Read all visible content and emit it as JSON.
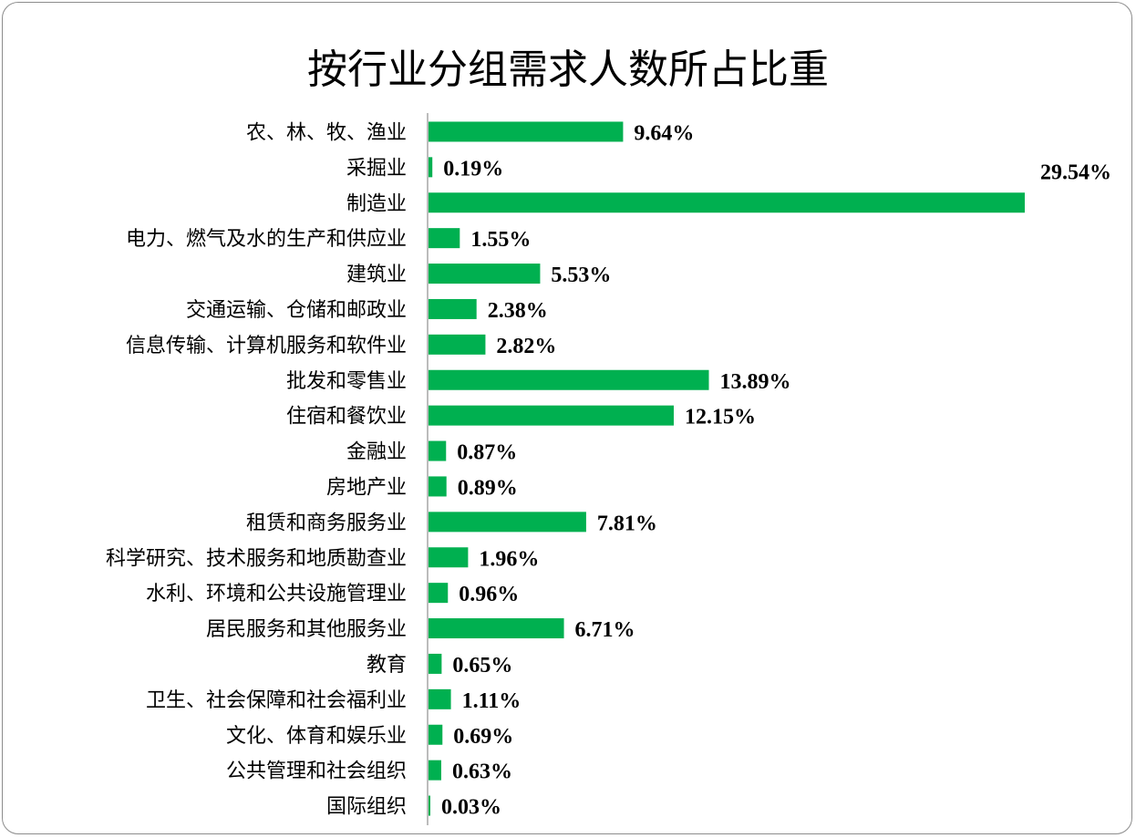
{
  "chart_data": {
    "type": "bar",
    "orientation": "horizontal",
    "title": "按行业分组需求人数所占比重",
    "bar_color": "#00b050",
    "categories": [
      "农、林、牧、渔业",
      "采掘业",
      "制造业",
      "电力、燃气及水的生产和供应业",
      "建筑业",
      "交通运输、仓储和邮政业",
      "信息传输、计算机服务和软件业",
      "批发和零售业",
      "住宿和餐饮业",
      "金融业",
      "房地产业",
      "租赁和商务服务业",
      "科学研究、技术服务和地质勘查业",
      "水利、环境和公共设施管理业",
      "居民服务和其他服务业",
      "教育",
      "卫生、社会保障和社会福利业",
      "文化、体育和娱乐业",
      "公共管理和社会组织",
      "国际组织"
    ],
    "values": [
      9.64,
      0.19,
      29.54,
      1.55,
      5.53,
      2.38,
      2.82,
      13.89,
      12.15,
      0.87,
      0.89,
      7.81,
      1.96,
      0.96,
      6.71,
      0.65,
      1.11,
      0.69,
      0.63,
      0.03
    ],
    "data_labels": [
      "9.64%",
      "0.19%",
      "29.54%",
      "1.55%",
      "5.53%",
      "2.38%",
      "2.82%",
      "13.89%",
      "12.15%",
      "0.87%",
      "0.89%",
      "7.81%",
      "1.96%",
      "0.96%",
      "6.71%",
      "0.65%",
      "1.11%",
      "0.69%",
      "0.63%",
      "0.03%"
    ],
    "xlim": [
      0,
      29.54
    ],
    "grid": false,
    "legend": "none"
  }
}
